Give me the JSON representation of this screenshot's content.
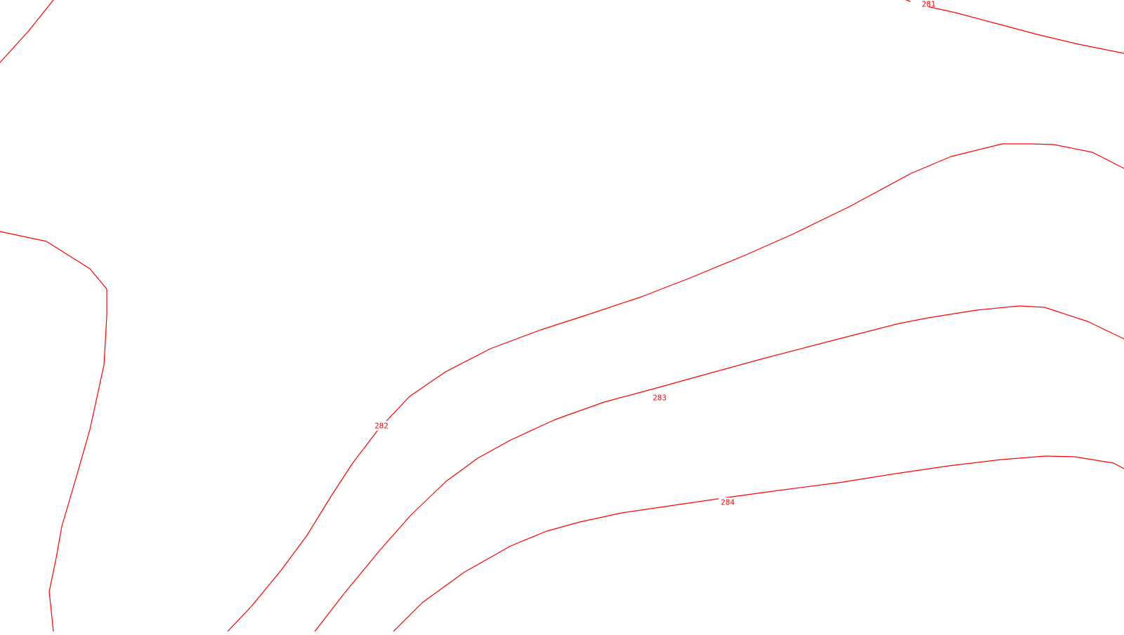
{
  "map": {
    "contour_color": "#ff0000",
    "background_color": "#ffffff",
    "contours": [
      {
        "id": "c-281",
        "label": "281"
      },
      {
        "id": "c-281-fragment",
        "label": ""
      },
      {
        "id": "c-281-west",
        "label": ""
      },
      {
        "id": "c-282",
        "label": "282"
      },
      {
        "id": "c-283",
        "label": "283"
      },
      {
        "id": "c-284",
        "label": "284"
      }
    ]
  }
}
